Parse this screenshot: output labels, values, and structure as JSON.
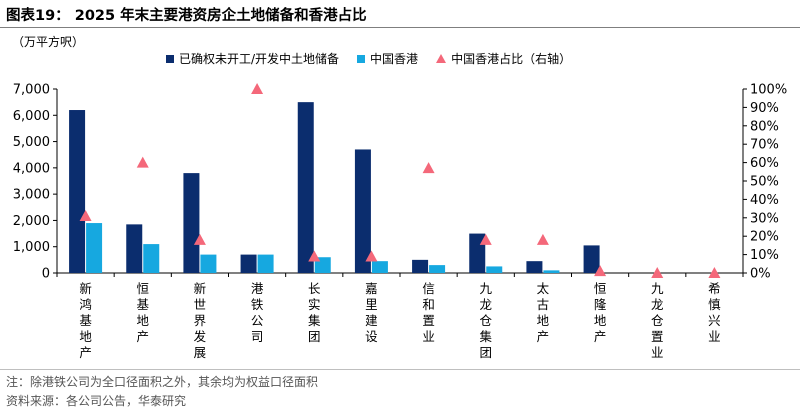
{
  "title": "图表19： 2025 年末主要港资房企土地储备和香港占比",
  "unit_label": "（万平方呎）",
  "note": "注：除港铁公司为全口径面积之外，其余均为权益口径面积",
  "source": "资料来源：各公司公告，华泰研究",
  "colors": {
    "bar_dark": "#0b2d6e",
    "bar_light": "#16a8e0",
    "marker": "#f4687a"
  },
  "chart_data": {
    "type": "bar",
    "categories": [
      "新鸿基地产",
      "恒基地产",
      "新世界发展",
      "港铁公司",
      "长实集团",
      "嘉里建设",
      "信和置业",
      "九龙仓集团",
      "太古地产",
      "恒隆地产",
      "九龙仓置业",
      "希慎兴业"
    ],
    "series": [
      {
        "name": "已确权未开工/开发中土地储备",
        "kind": "bar",
        "axis": "left",
        "values": [
          6200,
          1850,
          3800,
          700,
          6500,
          4700,
          500,
          1500,
          450,
          1050,
          0,
          0
        ]
      },
      {
        "name": "中国香港",
        "kind": "bar",
        "axis": "left",
        "values": [
          1900,
          1100,
          700,
          700,
          600,
          450,
          300,
          250,
          100,
          0,
          0,
          0
        ]
      },
      {
        "name": "中国香港占比（右轴）",
        "kind": "marker",
        "axis": "right",
        "values": [
          0.31,
          0.6,
          0.18,
          1.0,
          0.09,
          0.09,
          0.57,
          0.18,
          0.18,
          0.01,
          0.0,
          0.0
        ]
      }
    ],
    "ylim_left": [
      0,
      7000
    ],
    "yticks_left": [
      "0",
      "1,000",
      "2,000",
      "3,000",
      "4,000",
      "5,000",
      "6,000",
      "7,000"
    ],
    "ylim_right": [
      0,
      1
    ],
    "yticks_right": [
      "0%",
      "10%",
      "20%",
      "30%",
      "40%",
      "50%",
      "60%",
      "70%",
      "80%",
      "90%",
      "100%"
    ],
    "legend_position": "top",
    "grid": false
  }
}
